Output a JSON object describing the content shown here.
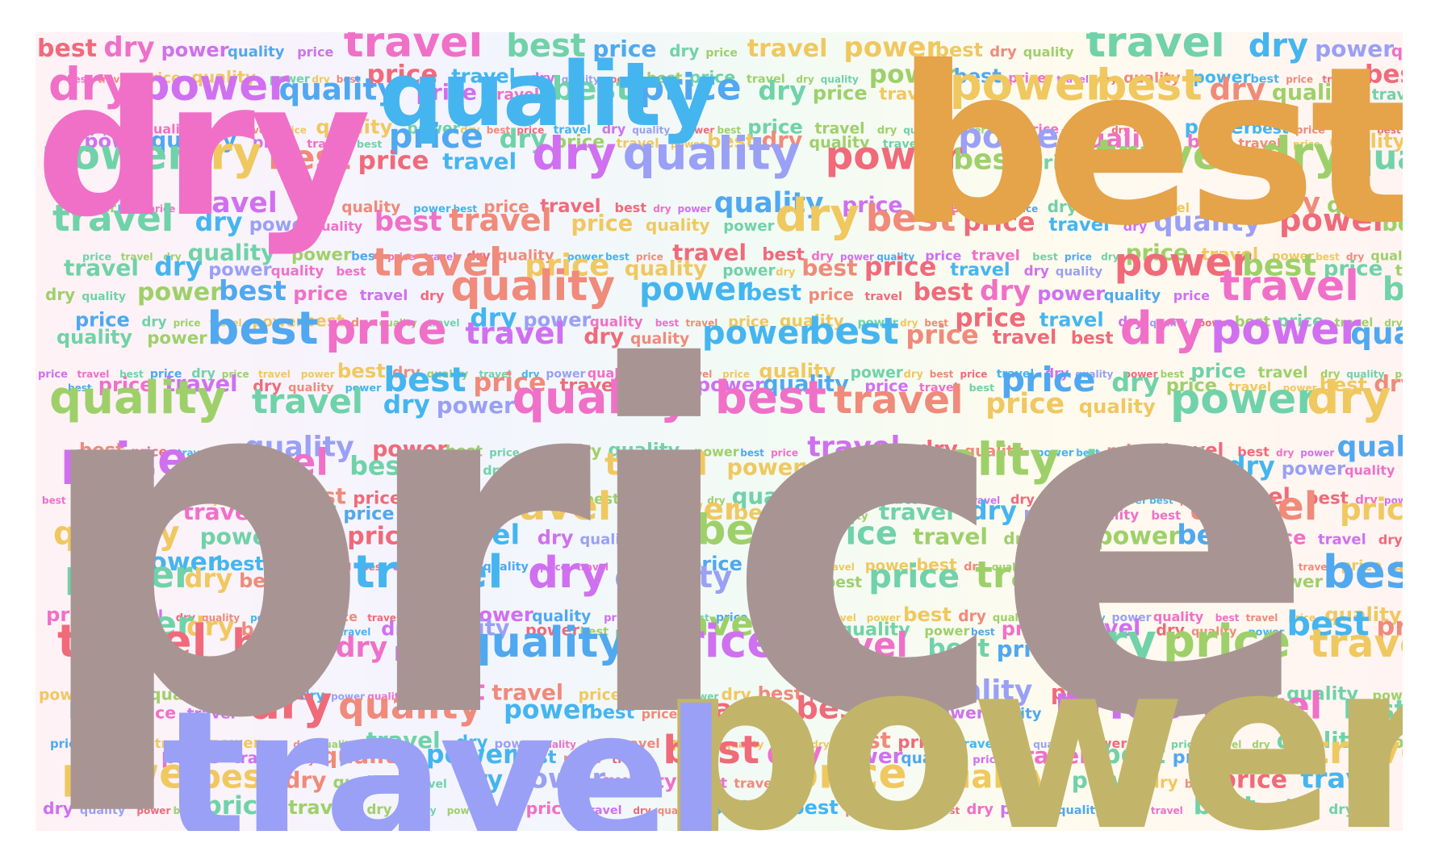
{
  "words": {
    "price": "price",
    "best": "best",
    "power": "power",
    "dry": "dry",
    "travel": "travel",
    "quality": "quality"
  },
  "colors": {
    "pink_red": "#f06a7a",
    "pink": "#f070c8",
    "violet": "#d070f0",
    "blue": "#50a8f0",
    "sky": "#45b5f0",
    "periwinkle": "#9aa0f5",
    "mint": "#70d2a8",
    "lime": "#9ed06a",
    "yellow": "#f0c860",
    "orange": "#e5a34a",
    "olive": "#c2b56a",
    "taupe": "#a89593",
    "coral": "#f08a7a"
  },
  "cloud": {
    "hero": [
      {
        "word": "price",
        "color": "taupe"
      },
      {
        "word": "best",
        "color": "orange"
      },
      {
        "word": "power",
        "color": "olive"
      },
      {
        "word": "travel",
        "color": "periwinkle"
      },
      {
        "word": "dry",
        "color": "pink"
      },
      {
        "word": "quality",
        "color": "sky"
      }
    ],
    "filler": [
      {
        "word": "best",
        "color": "pink_red"
      },
      {
        "word": "dry",
        "color": "pink"
      },
      {
        "word": "power",
        "color": "violet"
      },
      {
        "word": "quality",
        "color": "blue"
      },
      {
        "word": "price",
        "color": "violet"
      },
      {
        "word": "travel",
        "color": "pink"
      },
      {
        "word": "best",
        "color": "mint"
      },
      {
        "word": "price",
        "color": "blue"
      },
      {
        "word": "dry",
        "color": "mint"
      },
      {
        "word": "price",
        "color": "lime"
      },
      {
        "word": "travel",
        "color": "yellow"
      },
      {
        "word": "power",
        "color": "yellow"
      },
      {
        "word": "best",
        "color": "yellow"
      },
      {
        "word": "dry",
        "color": "coral"
      },
      {
        "word": "quality",
        "color": "lime"
      },
      {
        "word": "travel",
        "color": "mint"
      },
      {
        "word": "dry",
        "color": "sky"
      },
      {
        "word": "power",
        "color": "periwinkle"
      },
      {
        "word": "quality",
        "color": "pink"
      },
      {
        "word": "best",
        "color": "pink"
      },
      {
        "word": "travel",
        "color": "coral"
      },
      {
        "word": "price",
        "color": "yellow"
      },
      {
        "word": "quality",
        "color": "yellow"
      },
      {
        "word": "power",
        "color": "mint"
      },
      {
        "word": "dry",
        "color": "yellow"
      },
      {
        "word": "best",
        "color": "coral"
      },
      {
        "word": "price",
        "color": "pink_red"
      },
      {
        "word": "travel",
        "color": "sky"
      },
      {
        "word": "dry",
        "color": "violet"
      },
      {
        "word": "quality",
        "color": "periwinkle"
      },
      {
        "word": "power",
        "color": "pink_red"
      },
      {
        "word": "best",
        "color": "lime"
      },
      {
        "word": "price",
        "color": "mint"
      },
      {
        "word": "travel",
        "color": "lime"
      },
      {
        "word": "dry",
        "color": "lime"
      },
      {
        "word": "quality",
        "color": "mint"
      },
      {
        "word": "power",
        "color": "lime"
      },
      {
        "word": "best",
        "color": "blue"
      },
      {
        "word": "price",
        "color": "pink"
      },
      {
        "word": "travel",
        "color": "violet"
      },
      {
        "word": "dry",
        "color": "pink_red"
      },
      {
        "word": "quality",
        "color": "coral"
      },
      {
        "word": "power",
        "color": "sky"
      },
      {
        "word": "best",
        "color": "sky"
      },
      {
        "word": "price",
        "color": "coral"
      },
      {
        "word": "travel",
        "color": "pink_red"
      }
    ]
  }
}
